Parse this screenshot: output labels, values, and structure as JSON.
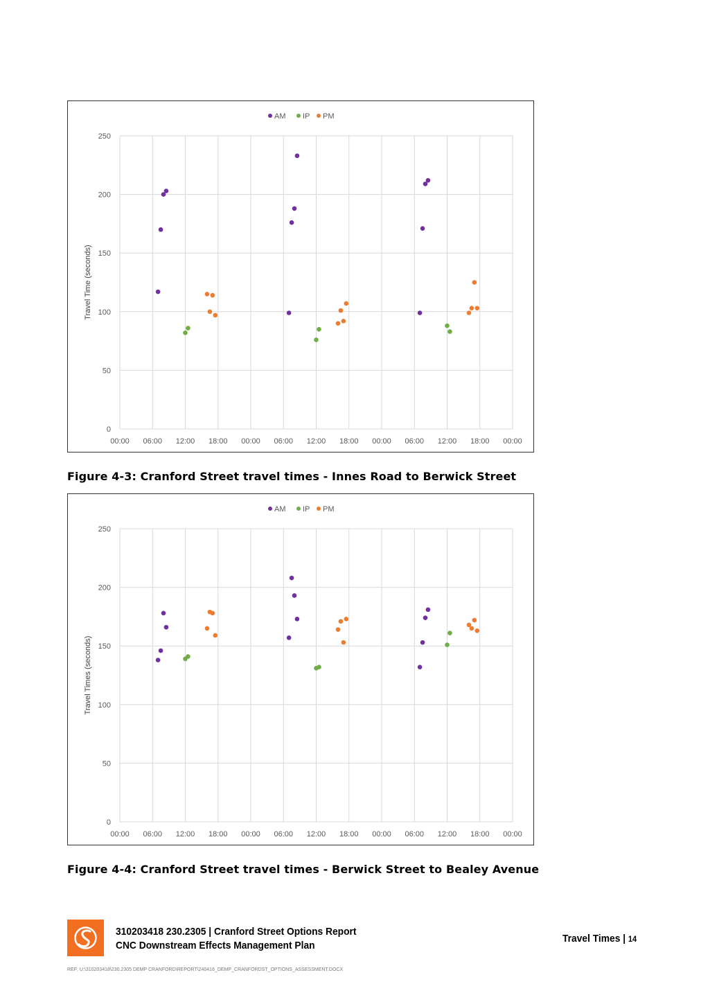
{
  "colors": {
    "AM": "#7030a0",
    "IP": "#70ad47",
    "PM": "#ed7d31",
    "logo": "#f26f21",
    "grid": "#d9d9d9"
  },
  "chart_data": [
    {
      "type": "scatter",
      "ylabel": "Travel Time (seconds)",
      "ylim": [
        0,
        250
      ],
      "yticks": [
        "0",
        "50",
        "100",
        "150",
        "200",
        "250"
      ],
      "xlim_hours": [
        0,
        72
      ],
      "xticks": [
        "00:00",
        "06:00",
        "12:00",
        "18:00",
        "00:00",
        "06:00",
        "12:00",
        "18:00",
        "00:00",
        "06:00",
        "12:00",
        "18:00",
        "00:00"
      ],
      "grid": true,
      "legend_position": "top",
      "legend": [
        "AM",
        "IP",
        "PM"
      ],
      "series": [
        {
          "name": "AM",
          "points": [
            [
              7.0,
              117
            ],
            [
              7.5,
              170
            ],
            [
              8.0,
              200
            ],
            [
              8.5,
              203
            ],
            [
              31.0,
              99
            ],
            [
              31.5,
              176
            ],
            [
              32.0,
              188
            ],
            [
              32.5,
              233
            ],
            [
              55.0,
              99
            ],
            [
              55.5,
              171
            ],
            [
              56.0,
              209
            ],
            [
              56.5,
              212
            ]
          ]
        },
        {
          "name": "IP",
          "points": [
            [
              12.0,
              82
            ],
            [
              12.5,
              86
            ],
            [
              36.0,
              76
            ],
            [
              36.5,
              85
            ],
            [
              60.0,
              88
            ],
            [
              60.5,
              83
            ]
          ]
        },
        {
          "name": "PM",
          "points": [
            [
              16.0,
              115
            ],
            [
              16.5,
              100
            ],
            [
              17.0,
              114
            ],
            [
              17.5,
              97
            ],
            [
              40.0,
              90
            ],
            [
              40.5,
              101
            ],
            [
              41.0,
              92
            ],
            [
              41.5,
              107
            ],
            [
              64.0,
              99
            ],
            [
              64.5,
              103
            ],
            [
              65.0,
              125
            ],
            [
              65.5,
              103
            ]
          ]
        }
      ]
    },
    {
      "type": "scatter",
      "ylabel": "Travel Times (seconds)",
      "ylim": [
        0,
        250
      ],
      "yticks": [
        "0",
        "50",
        "100",
        "150",
        "200",
        "250"
      ],
      "xlim_hours": [
        0,
        72
      ],
      "xticks": [
        "00:00",
        "06:00",
        "12:00",
        "18:00",
        "00:00",
        "06:00",
        "12:00",
        "18:00",
        "00:00",
        "06:00",
        "12:00",
        "18:00",
        "00:00"
      ],
      "grid": true,
      "legend_position": "top",
      "legend": [
        "AM",
        "IP",
        "PM"
      ],
      "series": [
        {
          "name": "AM",
          "points": [
            [
              7.0,
              138
            ],
            [
              7.5,
              146
            ],
            [
              8.0,
              178
            ],
            [
              8.5,
              166
            ],
            [
              31.0,
              157
            ],
            [
              31.5,
              208
            ],
            [
              32.0,
              193
            ],
            [
              32.5,
              173
            ],
            [
              55.0,
              132
            ],
            [
              55.5,
              153
            ],
            [
              56.0,
              174
            ],
            [
              56.5,
              181
            ]
          ]
        },
        {
          "name": "IP",
          "points": [
            [
              12.0,
              139
            ],
            [
              12.5,
              141
            ],
            [
              36.0,
              131
            ],
            [
              36.5,
              132
            ],
            [
              60.0,
              151
            ],
            [
              60.5,
              161
            ]
          ]
        },
        {
          "name": "PM",
          "points": [
            [
              16.0,
              165
            ],
            [
              16.5,
              179
            ],
            [
              17.0,
              178
            ],
            [
              17.5,
              159
            ],
            [
              40.0,
              164
            ],
            [
              40.5,
              171
            ],
            [
              41.0,
              153
            ],
            [
              41.5,
              173
            ],
            [
              64.0,
              168
            ],
            [
              64.5,
              165
            ],
            [
              65.0,
              172
            ],
            [
              65.5,
              163
            ]
          ]
        }
      ]
    }
  ],
  "captions": {
    "figure_4_3": "Figure 4-3: Cranford Street travel times - Innes Road to Berwick Street",
    "figure_4_4": "Figure 4-4: Cranford Street travel times - Berwick Street to Bealey Avenue"
  },
  "footer": {
    "line1": "310203418 230.2305 | Cranford Street Options Report",
    "line2": "CNC Downstream Effects Management Plan",
    "section": "Travel Times |",
    "page": "14",
    "ref": "REF:  U:\\310203418\\230.2305 DEMP CRANFORD\\REPORT\\240416_DEMP_CRANFORDST_OPTIONS_ASSESSMENT.DOCX"
  }
}
